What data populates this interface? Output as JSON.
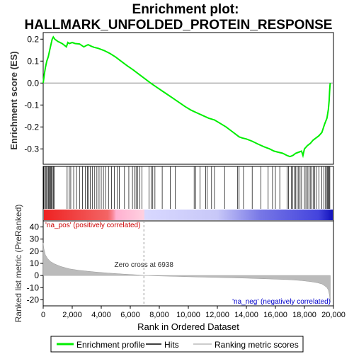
{
  "chart_data": {
    "type": "line",
    "title": "Enrichment plot:\nHALLMARK_UNFOLDED_PROTEIN_RESPONSE",
    "title_lines": [
      "Enrichment plot:",
      "HALLMARK_UNFOLDED_PROTEIN_RESPONSE"
    ],
    "xlabel": "Rank in Ordered Dataset",
    "xlim": [
      0,
      20000
    ],
    "xticks": [
      0,
      2000,
      4000,
      6000,
      8000,
      10000,
      12000,
      14000,
      16000,
      18000,
      20000
    ],
    "xtick_labels": [
      "0",
      "2,000",
      "4,000",
      "6,000",
      "8,000",
      "10,000",
      "12,000",
      "14,000",
      "16,000",
      "18,000",
      "20,000"
    ],
    "es_panel": {
      "ylabel": "Enrichment score (ES)",
      "ylim": [
        -0.37,
        0.23
      ],
      "yticks": [
        -0.3,
        -0.2,
        -0.1,
        0.0,
        0.1,
        0.2
      ],
      "ytick_labels": [
        "-0.3",
        "-0.2",
        "-0.1",
        "0.0",
        "0.1",
        "0.2"
      ],
      "series": [
        {
          "name": "Enrichment profile",
          "color": "#00ee00",
          "x": [
            0,
            80,
            150,
            250,
            350,
            450,
            550,
            620,
            700,
            800,
            1000,
            1300,
            1600,
            1700,
            1800,
            2000,
            2200,
            2500,
            2800,
            3000,
            3100,
            3300,
            3500,
            3800,
            4200,
            4600,
            5000,
            5400,
            5800,
            6200,
            6600,
            7000,
            7400,
            7800,
            8200,
            8600,
            9000,
            9400,
            9800,
            10200,
            10600,
            11000,
            11400,
            11800,
            12200,
            12600,
            13000,
            13300,
            13500,
            13700,
            14000,
            14400,
            14800,
            15200,
            15600,
            15900,
            16200,
            16500,
            16800,
            17000,
            17200,
            17400,
            17600,
            17800,
            17900,
            18000,
            18200,
            18400,
            18600,
            18800,
            19000,
            19200,
            19400,
            19550,
            19650,
            19700,
            19730,
            19760,
            19780
          ],
          "y": [
            0.0,
            0.04,
            0.07,
            0.1,
            0.12,
            0.15,
            0.18,
            0.2,
            0.21,
            0.2,
            0.19,
            0.18,
            0.165,
            0.185,
            0.18,
            0.185,
            0.18,
            0.178,
            0.165,
            0.172,
            0.175,
            0.168,
            0.163,
            0.158,
            0.148,
            0.135,
            0.118,
            0.098,
            0.078,
            0.06,
            0.04,
            0.02,
            0.0,
            -0.018,
            -0.036,
            -0.054,
            -0.072,
            -0.09,
            -0.108,
            -0.124,
            -0.136,
            -0.148,
            -0.16,
            -0.168,
            -0.184,
            -0.2,
            -0.22,
            -0.235,
            -0.245,
            -0.25,
            -0.255,
            -0.265,
            -0.278,
            -0.29,
            -0.3,
            -0.31,
            -0.315,
            -0.32,
            -0.33,
            -0.335,
            -0.33,
            -0.32,
            -0.315,
            -0.31,
            -0.33,
            -0.3,
            -0.285,
            -0.275,
            -0.26,
            -0.25,
            -0.24,
            -0.225,
            -0.185,
            -0.16,
            -0.12,
            -0.08,
            -0.04,
            -0.01,
            0.0
          ]
        }
      ]
    },
    "hits": [
      30,
      90,
      160,
      230,
      300,
      360,
      420,
      480,
      530,
      580,
      630,
      700,
      760,
      1650,
      1800,
      1900,
      2100,
      2300,
      2500,
      2700,
      2900,
      3050,
      3150,
      3250,
      3400,
      3550,
      3700,
      3850,
      4000,
      4150,
      4300,
      4500,
      4700,
      4900,
      5100,
      5250,
      5600,
      5900,
      6150,
      6300,
      6400,
      6500,
      6650,
      6800,
      7300,
      7450,
      7550,
      7700,
      8200,
      8750,
      9100,
      10400,
      10500,
      10800,
      11200,
      11300,
      11600,
      11800,
      12500,
      13400,
      13500,
      13800,
      14400,
      15000,
      15500,
      15800,
      16000,
      16300,
      16800,
      16900,
      17100,
      17200,
      17300,
      17400,
      17500,
      17600,
      17700,
      17800,
      18000,
      18100,
      18200,
      18300,
      18400,
      18500,
      18600,
      18700,
      18800,
      19000,
      19200,
      19350,
      19450,
      19550,
      19600,
      19650,
      19700,
      19750
    ],
    "metric_panel": {
      "ylabel": "Ranked list metric (PreRanked)",
      "ylim": [
        -25,
        45
      ],
      "yticks": [
        -20,
        -10,
        0,
        10,
        20,
        30,
        40
      ],
      "ytick_labels": [
        "-20",
        "-10",
        "0",
        "10",
        "20",
        "30",
        "40"
      ],
      "x": [
        0,
        50,
        150,
        300,
        500,
        800,
        1200,
        1800,
        2500,
        3500,
        4500,
        5500,
        6500,
        6938,
        8000,
        9000,
        10000,
        11000,
        12000,
        13000,
        14000,
        15000,
        16000,
        17000,
        17800,
        18400,
        18900,
        19200,
        19400,
        19550,
        19650,
        19720,
        19780
      ],
      "values": [
        27,
        22,
        17,
        14,
        11.5,
        9.5,
        7.5,
        5.5,
        4.2,
        3.0,
        2.0,
        1.2,
        0.5,
        0.0,
        -0.4,
        -0.7,
        -1.0,
        -1.3,
        -1.6,
        -1.9,
        -2.2,
        -2.6,
        -3.0,
        -3.5,
        -4.2,
        -5.0,
        -6.0,
        -7.0,
        -8.5,
        -10.0,
        -12.0,
        -16.0,
        -22.0
      ],
      "fill_color": "#bbbbbb",
      "zero_cross_label": "Zero cross at 6938",
      "zero_cross_x": 6938,
      "pos_label": "'na_pos' (positively correlated)",
      "neg_label": "'na_neg' (negatively correlated)",
      "pos_label_color": "#cc0000",
      "neg_label_color": "#0000cc"
    },
    "legend": {
      "placement": "bottom",
      "items": [
        {
          "label": "Enrichment profile",
          "color": "#00ee00",
          "kind": "line"
        },
        {
          "label": "Hits",
          "color": "#000000",
          "kind": "line"
        },
        {
          "label": "Ranking metric scores",
          "color": "#bbbbbb",
          "kind": "line"
        }
      ]
    },
    "heat_colors": {
      "positive": "#ee2222",
      "negative": "#2222dd"
    }
  }
}
